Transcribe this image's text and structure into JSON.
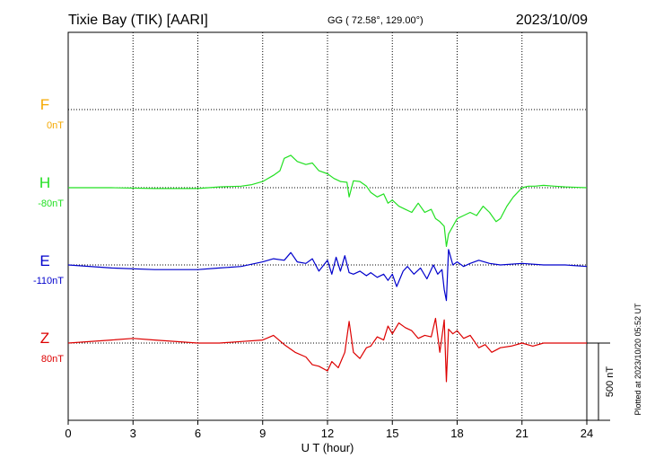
{
  "header": {
    "station": "Tixie Bay (TIK)  [AARI]",
    "coords": "GG ( 72.58°, 129.00°)",
    "date": "2023/10/09"
  },
  "plotted_note": "Plotted at 2023/10/20 05:52 UT",
  "chart_data": {
    "type": "line",
    "xlabel": "U T (hour)",
    "xlim": [
      0,
      24
    ],
    "xticks": [
      0,
      3,
      6,
      9,
      12,
      15,
      18,
      21,
      24
    ],
    "tick_labels": [
      "0",
      "3",
      "6",
      "9",
      "12",
      "15",
      "18",
      "21",
      "24"
    ],
    "scale_bar": {
      "label": "500 nT",
      "value_nT": 500
    },
    "grid": true,
    "series": [
      {
        "name": "F",
        "baseline_label": "0nT",
        "color": "#f5a800",
        "x": [],
        "y": []
      },
      {
        "name": "H",
        "baseline_label": "-80nT",
        "color": "#22e022",
        "x": [
          0,
          2,
          4,
          6,
          7,
          8,
          8.5,
          9,
          9.5,
          9.8,
          10,
          10.3,
          10.6,
          11,
          11.3,
          11.6,
          12,
          12.3,
          12.6,
          12.9,
          13,
          13.2,
          13.5,
          13.8,
          14,
          14.3,
          14.6,
          14.8,
          15,
          15.3,
          15.6,
          15.9,
          16.2,
          16.5,
          16.8,
          17,
          17.2,
          17.4,
          17.5,
          17.6,
          17.8,
          18,
          18.3,
          18.6,
          18.9,
          19.2,
          19.5,
          19.8,
          20,
          20.3,
          20.6,
          21,
          21.3,
          21.6,
          22,
          22.5,
          23,
          24
        ],
        "y": [
          0,
          0,
          -5,
          -5,
          5,
          10,
          20,
          40,
          80,
          110,
          190,
          210,
          170,
          150,
          160,
          110,
          90,
          60,
          40,
          35,
          -60,
          45,
          40,
          10,
          -30,
          -60,
          -40,
          -100,
          -80,
          -120,
          -140,
          -160,
          -100,
          -160,
          -140,
          -200,
          -220,
          -250,
          -380,
          -300,
          -250,
          -200,
          -180,
          -160,
          -180,
          -120,
          -160,
          -220,
          -200,
          -120,
          -60,
          0,
          10,
          10,
          15,
          10,
          5,
          0
        ]
      },
      {
        "name": "E",
        "baseline_label": "-110nT",
        "color": "#0000cc",
        "x": [
          0,
          2,
          4,
          6,
          7,
          8,
          9,
          9.5,
          10,
          10.3,
          10.6,
          11,
          11.3,
          11.6,
          12,
          12.2,
          12.4,
          12.6,
          12.8,
          13,
          13.2,
          13.5,
          13.8,
          14,
          14.3,
          14.6,
          14.8,
          15,
          15.2,
          15.5,
          15.7,
          16,
          16.3,
          16.6,
          16.9,
          17.1,
          17.3,
          17.4,
          17.5,
          17.6,
          17.8,
          18,
          18.3,
          18.6,
          19,
          19.5,
          20,
          21,
          22,
          23,
          24
        ],
        "y": [
          0,
          -20,
          -30,
          -30,
          -20,
          -10,
          20,
          40,
          30,
          80,
          20,
          10,
          40,
          -40,
          30,
          -60,
          50,
          -40,
          60,
          -50,
          -60,
          -40,
          -70,
          -50,
          -80,
          -60,
          -100,
          -60,
          -140,
          -40,
          -10,
          -60,
          -20,
          -90,
          0,
          -60,
          -30,
          -160,
          -230,
          100,
          0,
          20,
          -10,
          10,
          30,
          10,
          0,
          10,
          0,
          0,
          -10
        ]
      },
      {
        "name": "Z",
        "baseline_label": "80nT",
        "color": "#dd0000",
        "x": [
          0,
          2,
          3,
          4,
          6,
          7,
          8,
          9,
          9.5,
          10,
          10.5,
          11,
          11.3,
          11.6,
          12,
          12.2,
          12.5,
          12.8,
          13,
          13.2,
          13.5,
          13.8,
          14,
          14.3,
          14.6,
          14.8,
          15,
          15.3,
          15.6,
          15.9,
          16.2,
          16.5,
          16.8,
          17,
          17.2,
          17.4,
          17.5,
          17.6,
          17.8,
          18,
          18.3,
          18.6,
          19,
          19.3,
          19.6,
          20,
          20.5,
          21,
          21.5,
          22,
          23,
          24
        ],
        "y": [
          0,
          20,
          30,
          20,
          0,
          0,
          10,
          20,
          50,
          -10,
          -60,
          -90,
          -140,
          -150,
          -180,
          -120,
          -160,
          -60,
          140,
          -60,
          -100,
          -30,
          -20,
          40,
          20,
          110,
          60,
          130,
          100,
          80,
          30,
          50,
          40,
          160,
          -60,
          150,
          -250,
          90,
          60,
          80,
          30,
          50,
          -30,
          -10,
          -60,
          -30,
          -20,
          0,
          -20,
          0,
          0,
          0
        ]
      }
    ]
  }
}
